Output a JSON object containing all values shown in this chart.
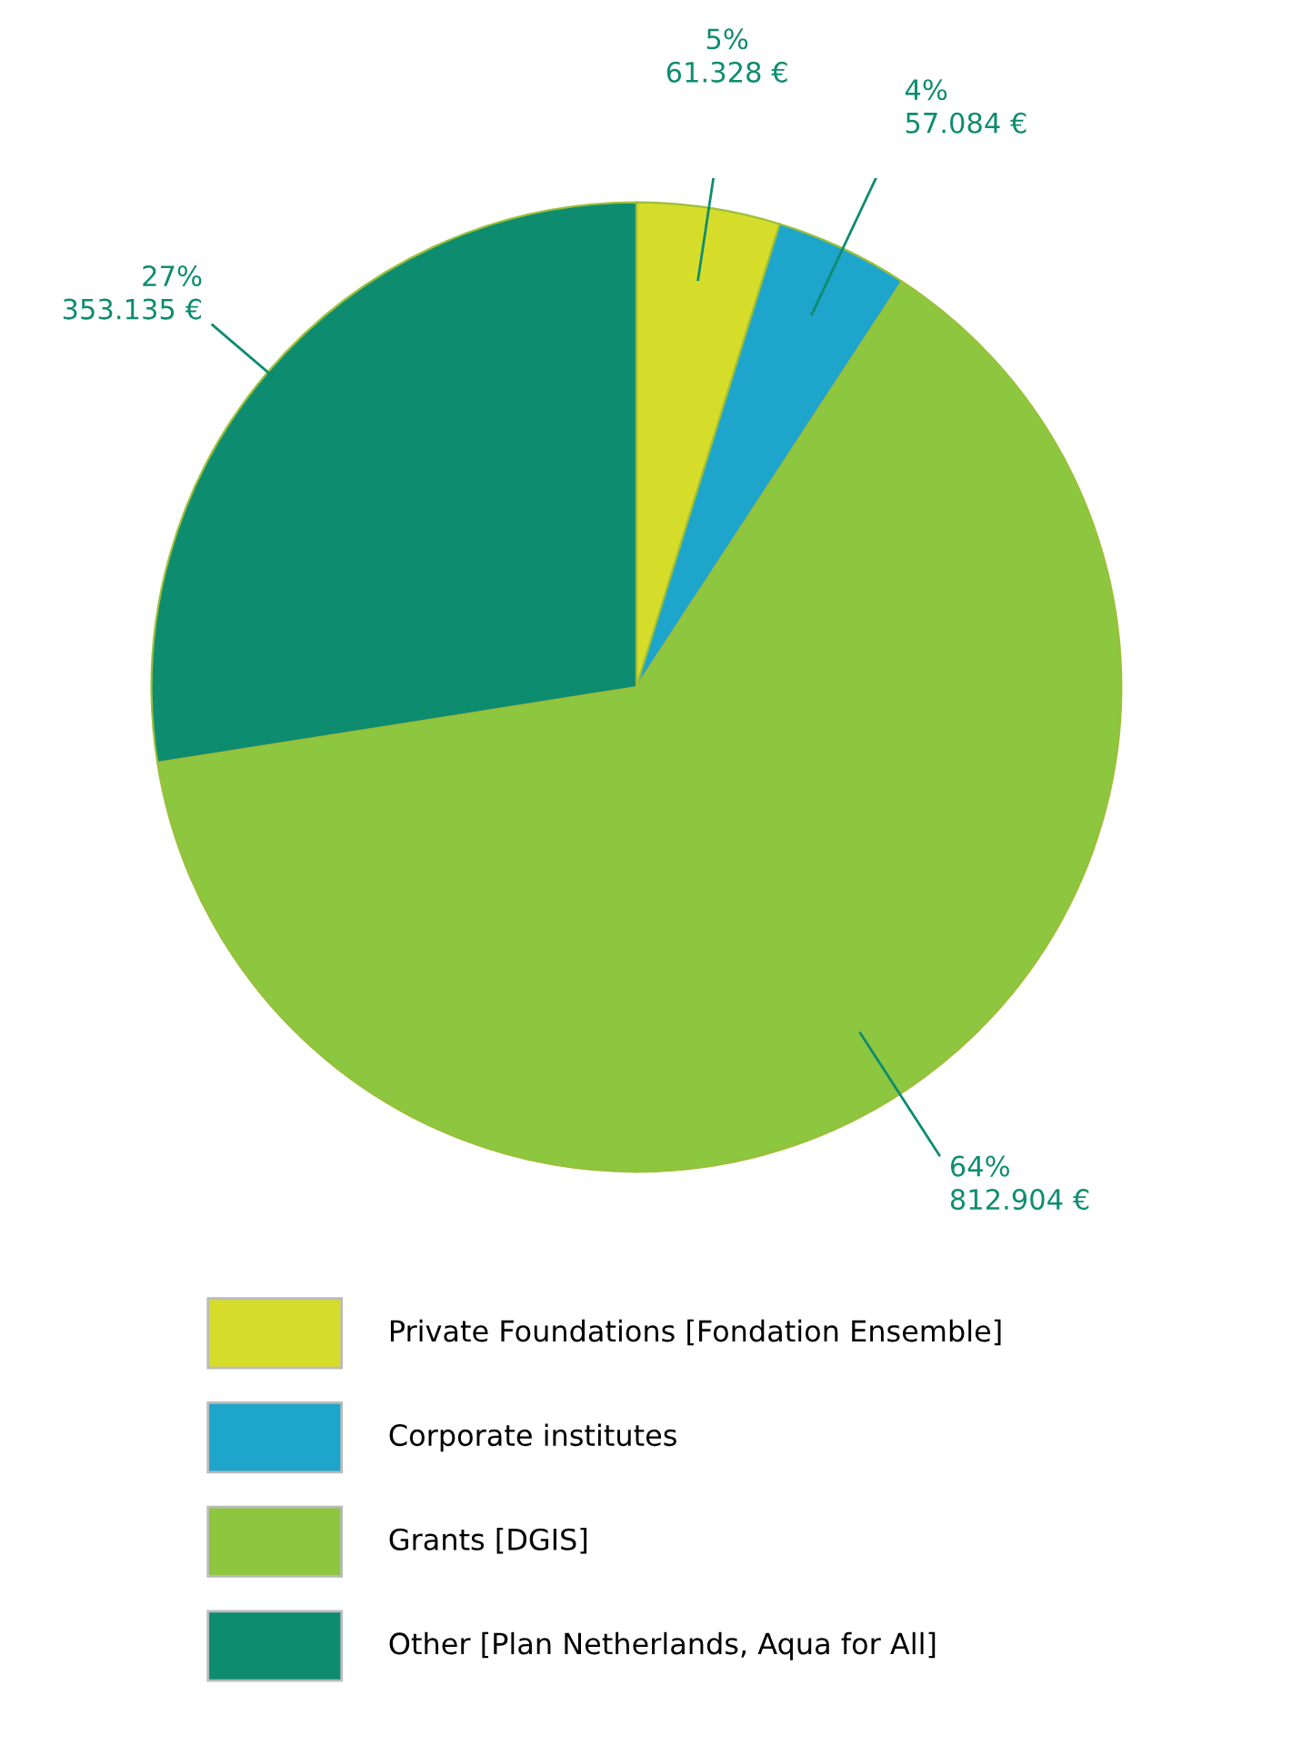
{
  "chart_data": {
    "type": "pie",
    "categories": [
      "Private Foundations [Fondation Ensemble]",
      "Corporate institutes",
      "Grants [DGIS]",
      "Other [Plan Netherlands, Aqua for All]"
    ],
    "values": [
      61328,
      57084,
      812904,
      353135
    ],
    "colors": [
      "#d6dc2a",
      "#1ea5cb",
      "#8dc63f",
      "#0e8c6f"
    ],
    "value_labels": [
      "5%\n61.328 €",
      "4%\n57.084 €",
      "64%\n812.904 €",
      "27%\n353.135 €"
    ],
    "legend": "bottom"
  }
}
